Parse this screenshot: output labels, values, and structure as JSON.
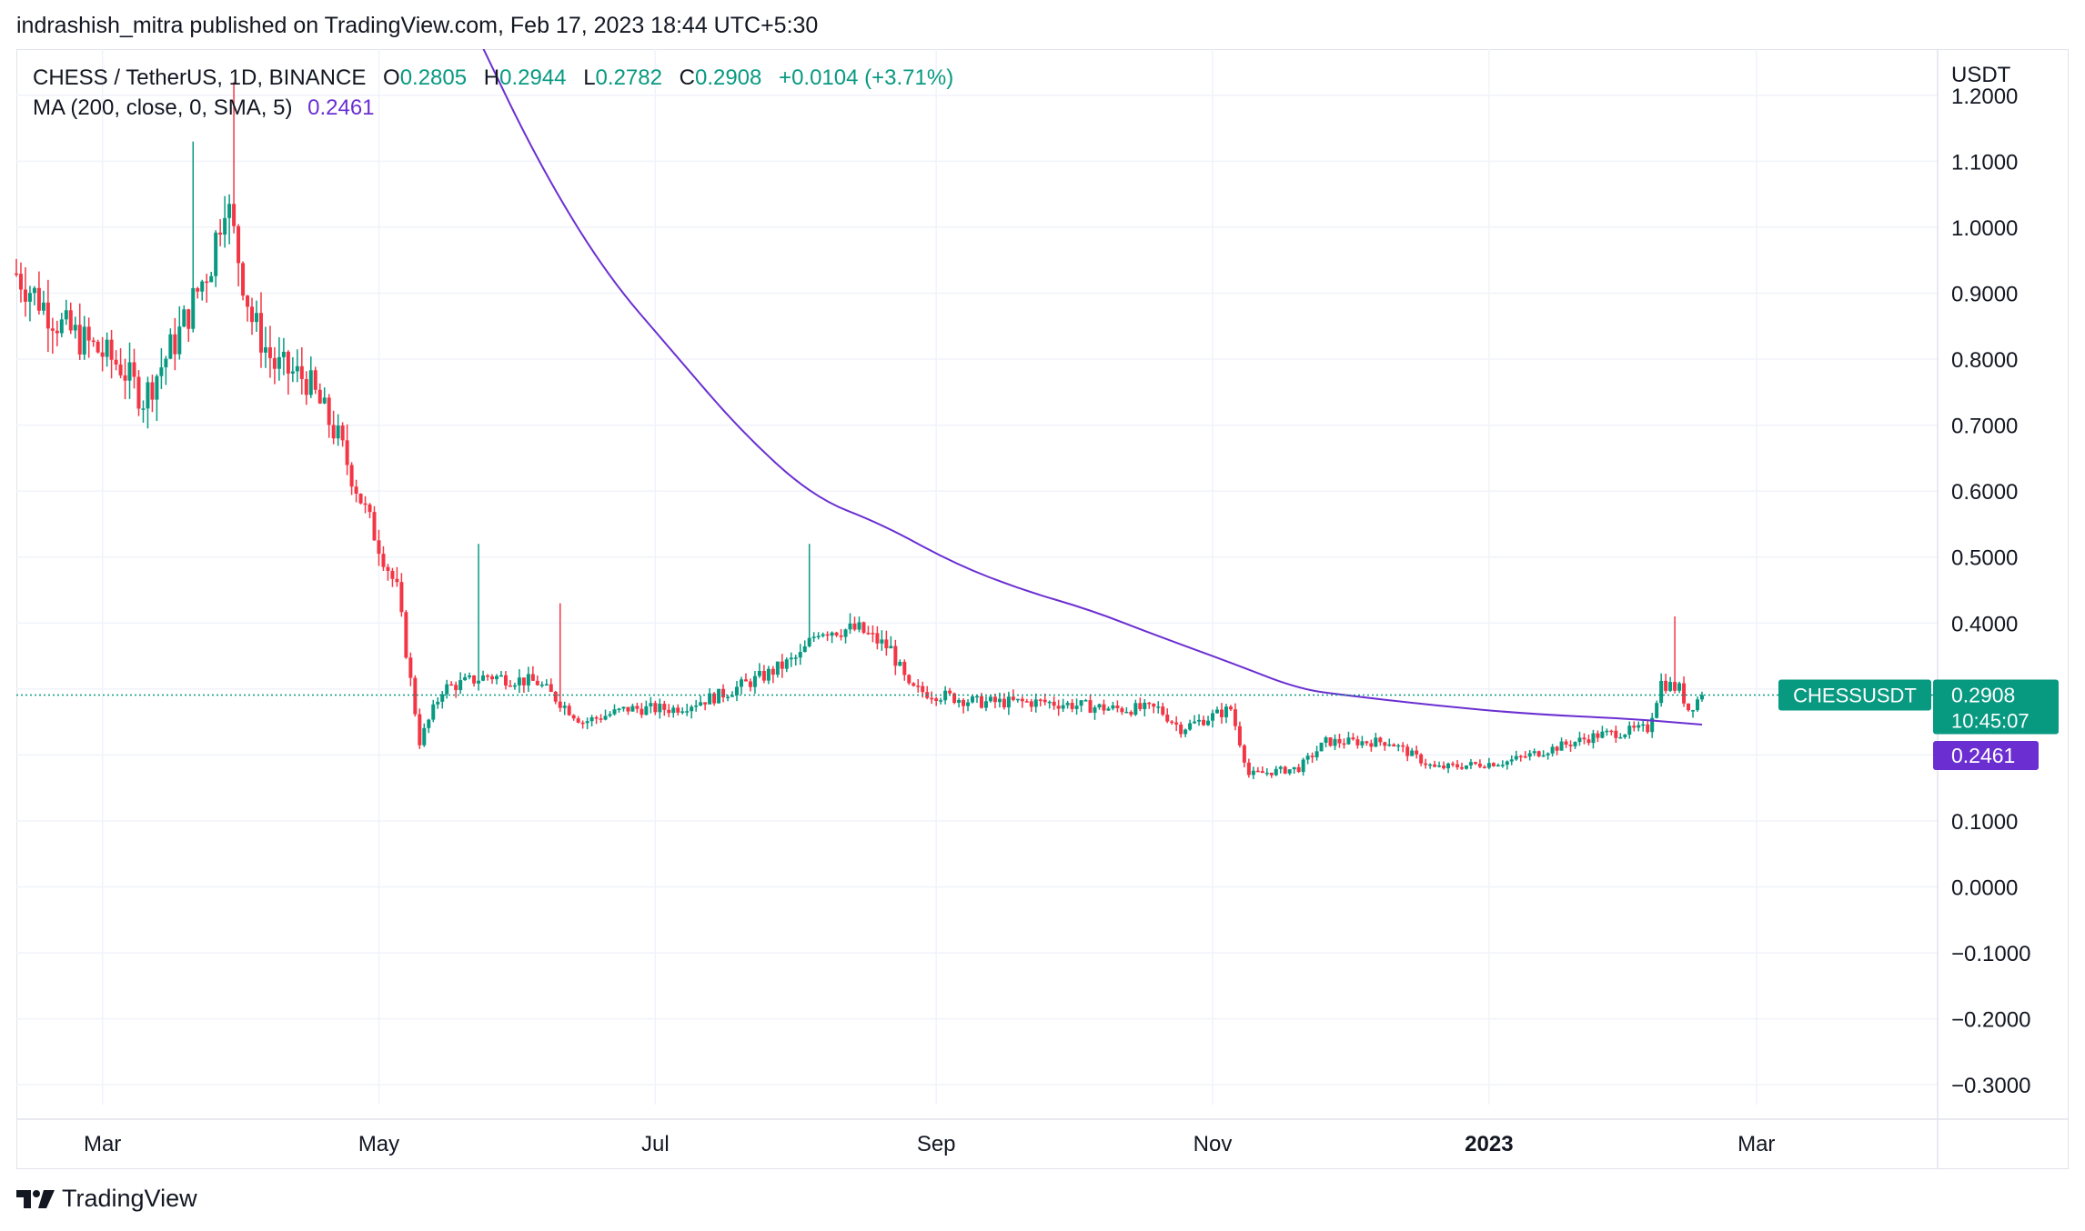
{
  "header": {
    "published_by": "indrashish_mitra published on TradingView.com, Feb 17, 2023 18:44 UTC+5:30"
  },
  "legend": {
    "symbol": "CHESS / TetherUS, 1D, BINANCE",
    "o_label": "O",
    "o_value": "0.2805",
    "h_label": "H",
    "h_value": "0.2944",
    "l_label": "L",
    "l_value": "0.2782",
    "c_label": "C",
    "c_value": "0.2908",
    "change": "+0.0104 (+3.71%)",
    "ma_label": "MA (200, close, 0, SMA, 5)",
    "ma_value": "0.2461"
  },
  "price_tags": {
    "symbol_tag": "CHESSUSDT",
    "last_price": "0.2908",
    "countdown": "10:45:07",
    "ma_price": "0.2461"
  },
  "footer": {
    "brand": "TradingView"
  },
  "colors": {
    "up": "#089981",
    "down": "#f23645",
    "ma_line": "#6b2fd1",
    "grid": "#f0f3fa",
    "text": "#131722"
  },
  "chart_data": {
    "type": "candlestick",
    "symbol": "CHESSUSDT",
    "timeframe": "1D",
    "exchange": "BINANCE",
    "y_axis_unit": "USDT",
    "ylim": [
      -0.33,
      1.27
    ],
    "y_ticks": [
      "1.2000",
      "1.1000",
      "1.0000",
      "0.9000",
      "0.8000",
      "0.7000",
      "0.6000",
      "0.5000",
      "0.4000",
      "0.3000",
      "0.2000",
      "0.1000",
      "0.0000",
      "−0.1000",
      "−0.2000",
      "−0.3000"
    ],
    "y_tick_values": [
      1.2,
      1.1,
      1.0,
      0.9,
      0.8,
      0.7,
      0.6,
      0.5,
      0.4,
      0.3,
      0.2,
      0.1,
      0.0,
      -0.1,
      -0.2,
      -0.3
    ],
    "x_ticks": [
      "Mar",
      "May",
      "Jul",
      "Sep",
      "Nov",
      "2023",
      "Mar"
    ],
    "x_tick_dates": [
      "2022-03-01",
      "2022-05-01",
      "2022-07-01",
      "2022-09-01",
      "2022-11-01",
      "2023-01-01",
      "2023-03-01"
    ],
    "x_start": "2022-02-10",
    "x_end": "2023-04-10",
    "grid": true,
    "price_path": [
      {
        "date": "2022-02-10",
        "price": 0.93
      },
      {
        "date": "2022-02-20",
        "price": 0.85
      },
      {
        "date": "2022-03-05",
        "price": 0.79
      },
      {
        "date": "2022-03-10",
        "price": 0.74
      },
      {
        "date": "2022-03-18",
        "price": 0.84
      },
      {
        "date": "2022-03-25",
        "price": 0.95
      },
      {
        "date": "2022-03-28",
        "price": 1.05
      },
      {
        "date": "2022-04-03",
        "price": 0.86
      },
      {
        "date": "2022-04-08",
        "price": 0.79
      },
      {
        "date": "2022-04-15",
        "price": 0.77
      },
      {
        "date": "2022-04-22",
        "price": 0.68
      },
      {
        "date": "2022-04-28",
        "price": 0.57
      },
      {
        "date": "2022-05-05",
        "price": 0.45
      },
      {
        "date": "2022-05-10",
        "price": 0.22
      },
      {
        "date": "2022-05-15",
        "price": 0.3
      },
      {
        "date": "2022-05-25",
        "price": 0.32
      },
      {
        "date": "2022-06-05",
        "price": 0.31
      },
      {
        "date": "2022-06-15",
        "price": 0.25
      },
      {
        "date": "2022-06-25",
        "price": 0.27
      },
      {
        "date": "2022-07-05",
        "price": 0.27
      },
      {
        "date": "2022-07-15",
        "price": 0.29
      },
      {
        "date": "2022-07-25",
        "price": 0.32
      },
      {
        "date": "2022-08-02",
        "price": 0.35
      },
      {
        "date": "2022-08-06",
        "price": 0.39
      },
      {
        "date": "2022-08-15",
        "price": 0.39
      },
      {
        "date": "2022-08-22",
        "price": 0.36
      },
      {
        "date": "2022-08-26",
        "price": 0.3
      },
      {
        "date": "2022-09-10",
        "price": 0.28
      },
      {
        "date": "2022-09-25",
        "price": 0.28
      },
      {
        "date": "2022-10-10",
        "price": 0.27
      },
      {
        "date": "2022-10-20",
        "price": 0.27
      },
      {
        "date": "2022-10-25",
        "price": 0.24
      },
      {
        "date": "2022-11-05",
        "price": 0.27
      },
      {
        "date": "2022-11-09",
        "price": 0.17
      },
      {
        "date": "2022-11-20",
        "price": 0.18
      },
      {
        "date": "2022-11-26",
        "price": 0.22
      },
      {
        "date": "2022-12-10",
        "price": 0.22
      },
      {
        "date": "2022-12-20",
        "price": 0.18
      },
      {
        "date": "2023-01-05",
        "price": 0.19
      },
      {
        "date": "2023-01-15",
        "price": 0.21
      },
      {
        "date": "2023-01-25",
        "price": 0.23
      },
      {
        "date": "2023-02-05",
        "price": 0.24
      },
      {
        "date": "2023-02-08",
        "price": 0.31
      },
      {
        "date": "2023-02-12",
        "price": 0.3
      },
      {
        "date": "2023-02-14",
        "price": 0.27
      },
      {
        "date": "2023-02-17",
        "price": 0.2908
      }
    ],
    "spikes": [
      {
        "date": "2022-03-21",
        "high": 1.13
      },
      {
        "date": "2022-03-30",
        "high": 1.22
      },
      {
        "date": "2022-05-23",
        "high": 0.52
      },
      {
        "date": "2022-06-10",
        "high": 0.43
      },
      {
        "date": "2022-08-04",
        "high": 0.52
      },
      {
        "date": "2023-02-11",
        "high": 0.41
      }
    ],
    "ma_series": {
      "name": "MA (200, close, 0, SMA, 5)",
      "points": [
        {
          "date": "2022-05-22",
          "value": 1.3
        },
        {
          "date": "2022-06-05",
          "value": 1.1
        },
        {
          "date": "2022-06-20",
          "value": 0.93
        },
        {
          "date": "2022-07-05",
          "value": 0.81
        },
        {
          "date": "2022-07-20",
          "value": 0.69
        },
        {
          "date": "2022-08-05",
          "value": 0.59
        },
        {
          "date": "2022-08-20",
          "value": 0.55
        },
        {
          "date": "2022-09-05",
          "value": 0.49
        },
        {
          "date": "2022-09-20",
          "value": 0.45
        },
        {
          "date": "2022-10-05",
          "value": 0.42
        },
        {
          "date": "2022-10-20",
          "value": 0.38
        },
        {
          "date": "2022-11-05",
          "value": 0.34
        },
        {
          "date": "2022-11-20",
          "value": 0.3
        },
        {
          "date": "2022-12-01",
          "value": 0.29
        },
        {
          "date": "2022-12-20",
          "value": 0.275
        },
        {
          "date": "2023-01-10",
          "value": 0.262
        },
        {
          "date": "2023-02-01",
          "value": 0.255
        },
        {
          "date": "2023-02-17",
          "value": 0.2461
        }
      ]
    },
    "last_price": 0.2908,
    "ma_last": 0.2461
  }
}
